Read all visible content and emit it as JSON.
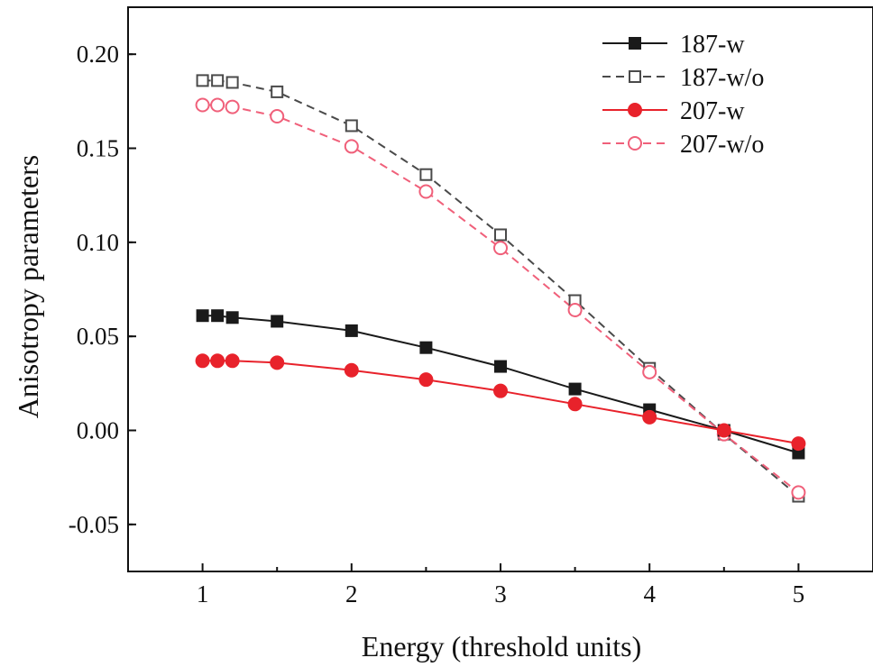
{
  "chart_data": {
    "type": "line",
    "title": "",
    "xlabel": "Energy (threshold units)",
    "ylabel": "Anisotropy parameters",
    "xlim": [
      0.5,
      5.5
    ],
    "ylim": [
      -0.075,
      0.225
    ],
    "xticks": [
      1,
      2,
      3,
      4,
      5
    ],
    "xtick_labels": [
      "1",
      "2",
      "3",
      "4",
      "5"
    ],
    "yticks": [
      -0.05,
      0.0,
      0.05,
      0.1,
      0.15,
      0.2
    ],
    "ytick_labels": [
      "-0.05",
      "0.00",
      "0.05",
      "0.10",
      "0.15",
      "0.20"
    ],
    "grid": false,
    "legend_position": "top-right",
    "series": [
      {
        "name": "187-w",
        "color": "#1a1a1a",
        "line_style": "solid",
        "marker": "square",
        "filled": true,
        "x": [
          1.0,
          1.1,
          1.2,
          1.5,
          2.0,
          2.5,
          3.0,
          3.5,
          4.0,
          4.5,
          5.0
        ],
        "values": [
          0.061,
          0.061,
          0.06,
          0.058,
          0.053,
          0.044,
          0.034,
          0.022,
          0.011,
          0.0,
          -0.012
        ]
      },
      {
        "name": "187-w/o",
        "color": "#4a4a4a",
        "line_style": "dashed",
        "marker": "square",
        "filled": false,
        "x": [
          1.0,
          1.1,
          1.2,
          1.5,
          2.0,
          2.5,
          3.0,
          3.5,
          4.0,
          4.5,
          5.0
        ],
        "values": [
          0.186,
          0.186,
          0.185,
          0.18,
          0.162,
          0.136,
          0.104,
          0.069,
          0.033,
          -0.002,
          -0.035
        ]
      },
      {
        "name": "207-w",
        "color": "#e8222b",
        "line_style": "solid",
        "marker": "circle",
        "filled": true,
        "x": [
          1.0,
          1.1,
          1.2,
          1.5,
          2.0,
          2.5,
          3.0,
          3.5,
          4.0,
          4.5,
          5.0
        ],
        "values": [
          0.037,
          0.037,
          0.037,
          0.036,
          0.032,
          0.027,
          0.021,
          0.014,
          0.007,
          0.0,
          -0.007
        ]
      },
      {
        "name": "207-w/o",
        "color": "#f0607a",
        "line_style": "dashed",
        "marker": "circle",
        "filled": false,
        "x": [
          1.0,
          1.1,
          1.2,
          1.5,
          2.0,
          2.5,
          3.0,
          3.5,
          4.0,
          4.5,
          5.0
        ],
        "values": [
          0.173,
          0.173,
          0.172,
          0.167,
          0.151,
          0.127,
          0.097,
          0.064,
          0.031,
          -0.002,
          -0.033
        ]
      }
    ]
  }
}
